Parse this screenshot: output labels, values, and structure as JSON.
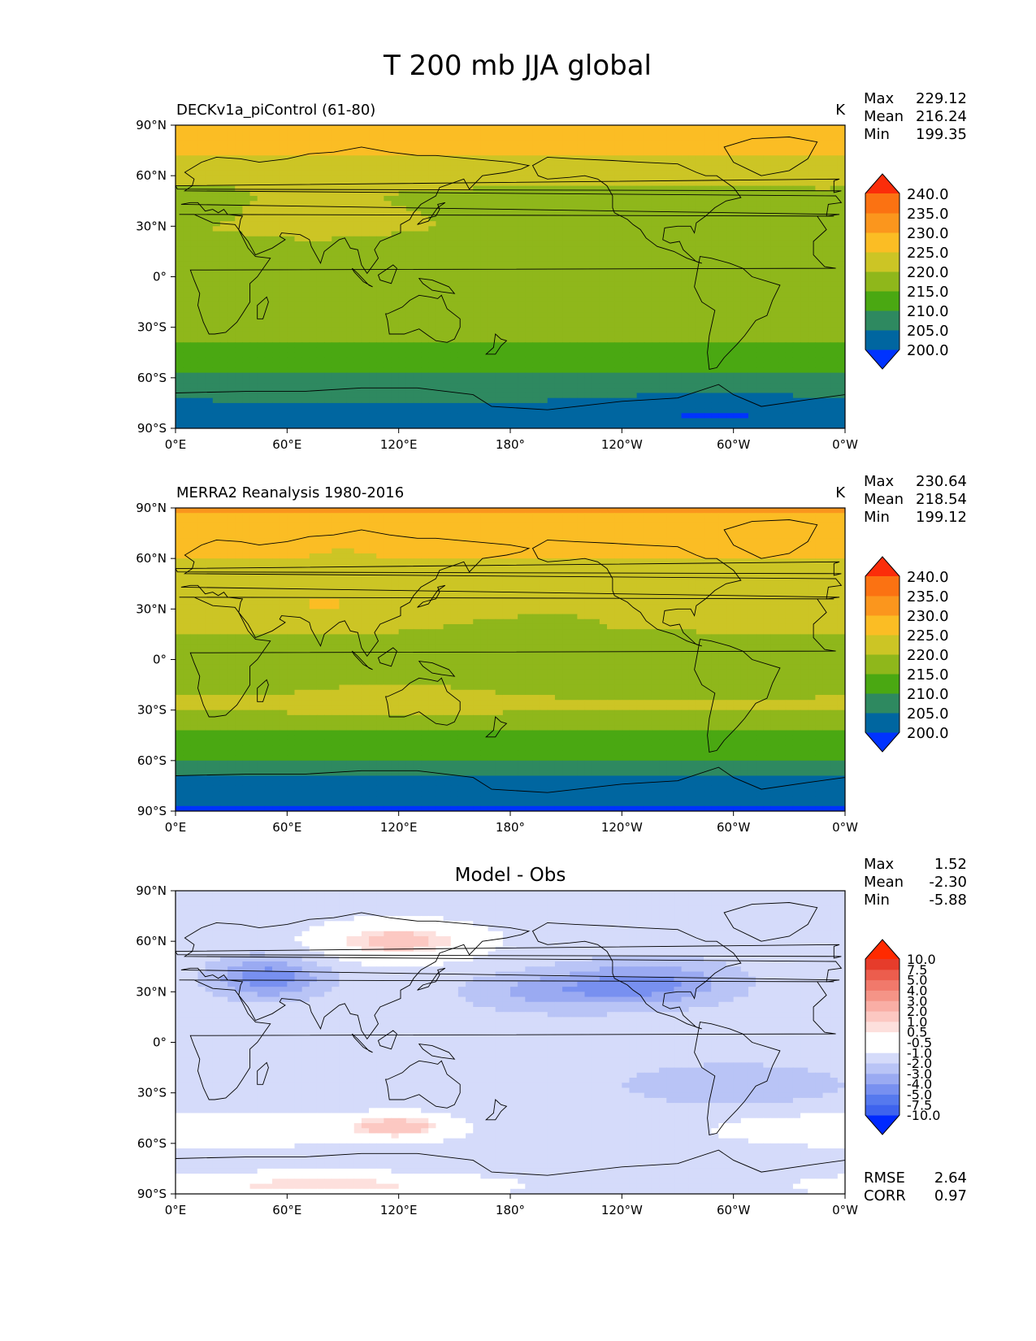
{
  "figure": {
    "title": "T 200 mb JJA global"
  },
  "colors": {
    "levels_abs": [
      "#0033ff",
      "#0066a0",
      "#2e8960",
      "#4aa812",
      "#8fb71b",
      "#ccc525",
      "#fbbd24",
      "#fb961d",
      "#fb7212",
      "#fb2d0a"
    ],
    "levels_diff": [
      "#0029ff",
      "#3e63ee",
      "#5679ee",
      "#7890f0",
      "#9aaaf2",
      "#b9c4f6",
      "#d5dbfa",
      "#ffffff",
      "#ffffff",
      "#fde0dd",
      "#fcc8c2",
      "#f9aea5",
      "#f59487",
      "#f1796b",
      "#ec5d4d",
      "#e63c2b",
      "#ff2a00"
    ],
    "land_outline": "#000000"
  },
  "chart_data": [
    {
      "type": "heatmap",
      "panel": "test",
      "subtitle": "DECKv1a_piControl (61-80)",
      "units": "K",
      "stats": {
        "max_label": "Max",
        "max": "229.12",
        "mean_label": "Mean",
        "mean": "216.24",
        "min_label": "Min",
        "min": "199.35"
      },
      "x_ticks": [
        "0°E",
        "60°E",
        "120°E",
        "180°",
        "120°W",
        "60°W",
        "0°W"
      ],
      "y_ticks": [
        "90°N",
        "60°N",
        "30°N",
        "0°",
        "30°S",
        "60°S",
        "90°S"
      ],
      "xlim": [
        0,
        360
      ],
      "ylim": [
        -90,
        90
      ],
      "colorbar_levels": [
        195,
        200,
        205,
        210,
        215,
        220,
        225,
        230,
        235,
        240,
        245
      ],
      "colorbar_labels": [
        "240.0",
        "235.0",
        "230.0",
        "225.0",
        "220.0",
        "215.0",
        "210.0",
        "205.0",
        "200.0"
      ],
      "colorbar_extend": "both"
    },
    {
      "type": "heatmap",
      "panel": "reference",
      "subtitle": "MERRA2 Reanalysis 1980-2016",
      "units": "K",
      "stats": {
        "max_label": "Max",
        "max": "230.64",
        "mean_label": "Mean",
        "mean": "218.54",
        "min_label": "Min",
        "min": "199.12"
      },
      "x_ticks": [
        "0°E",
        "60°E",
        "120°E",
        "180°",
        "120°W",
        "60°W",
        "0°W"
      ],
      "y_ticks": [
        "90°N",
        "60°N",
        "30°N",
        "0°",
        "30°S",
        "60°S",
        "90°S"
      ],
      "xlim": [
        0,
        360
      ],
      "ylim": [
        -90,
        90
      ],
      "colorbar_levels": [
        195,
        200,
        205,
        210,
        215,
        220,
        225,
        230,
        235,
        240,
        245
      ],
      "colorbar_labels": [
        "240.0",
        "235.0",
        "230.0",
        "225.0",
        "220.0",
        "215.0",
        "210.0",
        "205.0",
        "200.0"
      ],
      "colorbar_extend": "both"
    },
    {
      "type": "heatmap",
      "panel": "difference",
      "title": "Model - Obs",
      "stats": {
        "max_label": "Max",
        "max": "1.52",
        "mean_label": "Mean",
        "mean": "-2.30",
        "min_label": "Min",
        "min": "-5.88"
      },
      "metrics": {
        "rmse_label": "RMSE",
        "rmse": "2.64",
        "corr_label": "CORR",
        "corr": "0.97"
      },
      "x_ticks": [
        "0°E",
        "60°E",
        "120°E",
        "180°",
        "120°W",
        "60°W",
        "0°W"
      ],
      "y_ticks": [
        "90°N",
        "60°N",
        "30°N",
        "0°",
        "30°S",
        "60°S",
        "90°S"
      ],
      "xlim": [
        0,
        360
      ],
      "ylim": [
        -90,
        90
      ],
      "colorbar_levels": [
        -15,
        -10,
        -7.5,
        -5,
        -4,
        -3,
        -2,
        -1,
        -0.5,
        0.5,
        1,
        2,
        3,
        4,
        5,
        7.5,
        10,
        15
      ],
      "colorbar_labels": [
        "10.0",
        "7.5",
        "5.0",
        "4.0",
        "3.0",
        "2.0",
        "1.0",
        "0.5",
        "-0.5",
        "-1.0",
        "-2.0",
        "-3.0",
        "-4.0",
        "-5.0",
        "-7.5",
        "-10.0"
      ],
      "colorbar_extend": "both"
    }
  ]
}
